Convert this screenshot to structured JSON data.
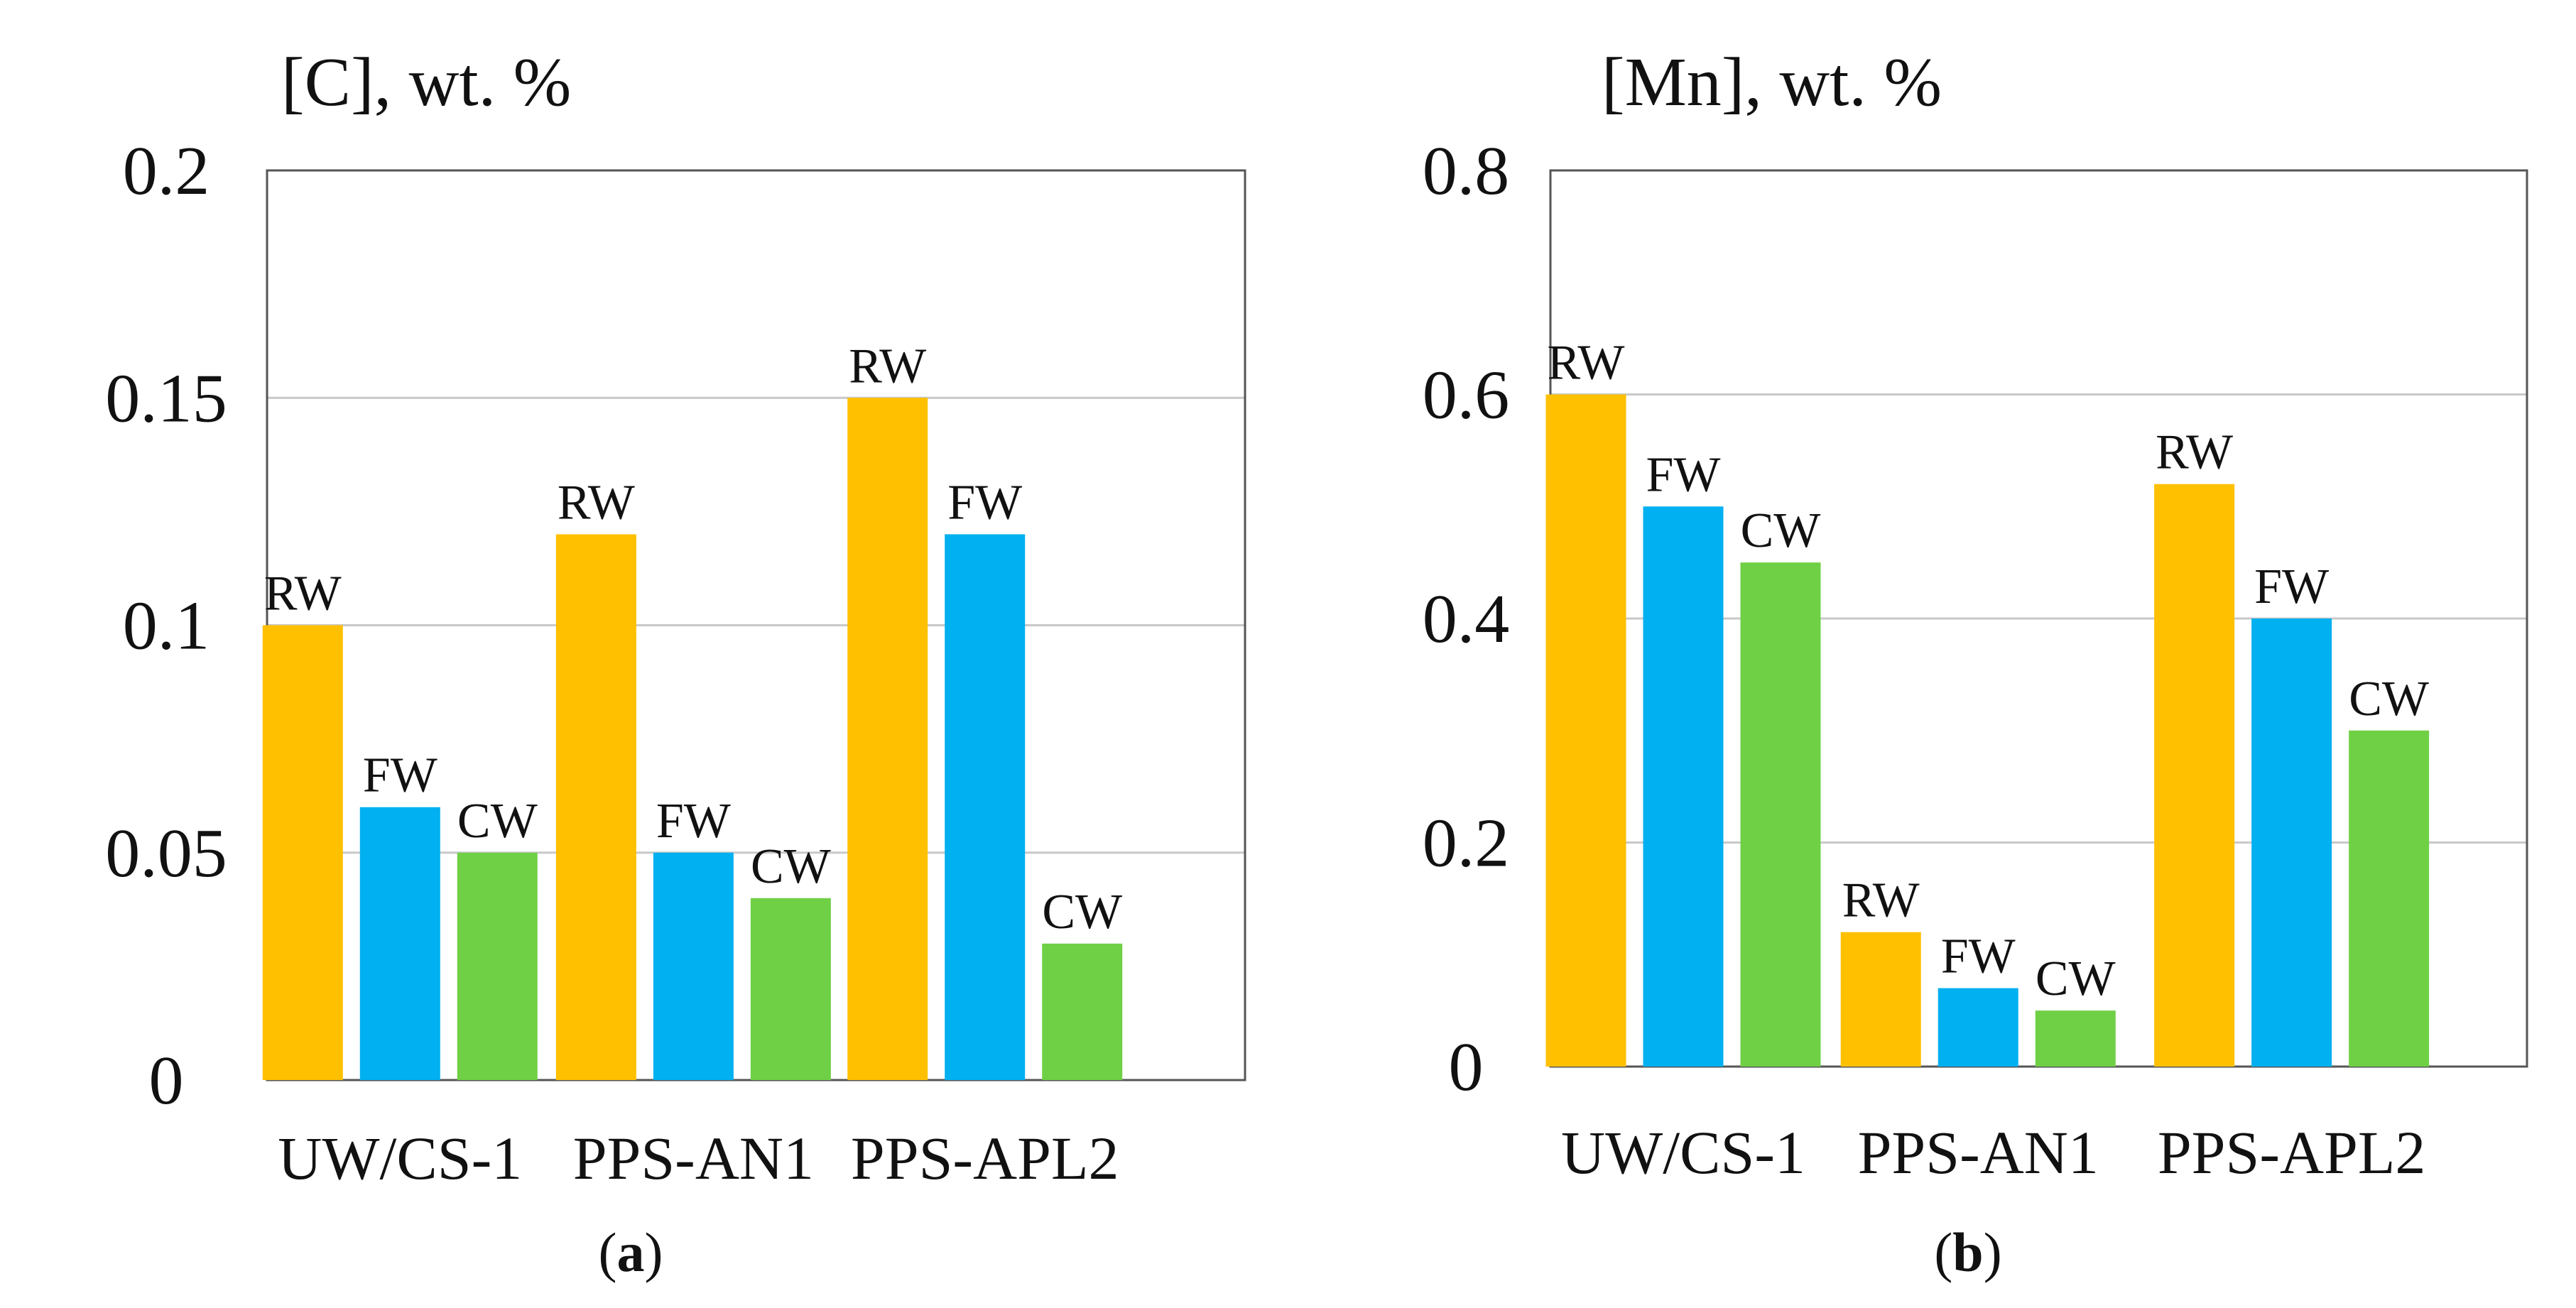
{
  "chart_data": [
    {
      "type": "bar",
      "panel_label_open": "(",
      "panel_label": "a",
      "panel_label_close": ")",
      "title": "",
      "ylabel": "[C], wt. %",
      "xlabel": "",
      "ylim": [
        0,
        0.2
      ],
      "yticks": [
        "0",
        "0.05",
        "0.1",
        "0.15",
        "0.2"
      ],
      "ytick_values": [
        0,
        0.05,
        0.1,
        0.15,
        0.2
      ],
      "grid": true,
      "categories": [
        "UW/CS-1",
        "PPS-AN1",
        "PPS-APL2"
      ],
      "series": [
        {
          "name": "RW",
          "color": "#FFC000",
          "values": [
            0.1,
            0.12,
            0.15
          ]
        },
        {
          "name": "FW",
          "color": "#00B0F0",
          "values": [
            0.06,
            0.05,
            0.12
          ]
        },
        {
          "name": "CW",
          "color": "#6FD046",
          "values": [
            0.05,
            0.04,
            0.03
          ]
        }
      ]
    },
    {
      "type": "bar",
      "panel_label_open": "(",
      "panel_label": "b",
      "panel_label_close": ")",
      "title": "",
      "ylabel": "[Mn], wt. %",
      "xlabel": "",
      "ylim": [
        0,
        0.8
      ],
      "yticks": [
        "0",
        "0.2",
        "0.4",
        "0.6",
        "0.8"
      ],
      "ytick_values": [
        0,
        0.2,
        0.4,
        0.6,
        0.8
      ],
      "grid": true,
      "categories": [
        "UW/CS-1",
        "PPS-AN1",
        "PPS-APL2"
      ],
      "series": [
        {
          "name": "RW",
          "color": "#FFC000",
          "values": [
            0.6,
            0.12,
            0.52
          ]
        },
        {
          "name": "FW",
          "color": "#00B0F0",
          "values": [
            0.5,
            0.07,
            0.4
          ]
        },
        {
          "name": "CW",
          "color": "#6FD046",
          "values": [
            0.45,
            0.05,
            0.3
          ]
        }
      ]
    }
  ]
}
